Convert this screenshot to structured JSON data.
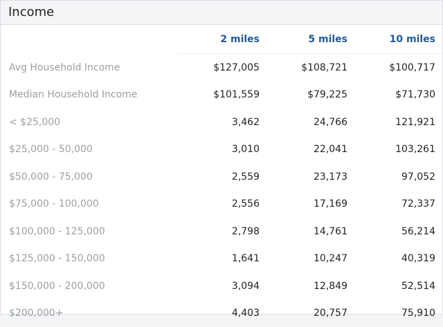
{
  "title": "Income",
  "columns": [
    "2 miles",
    "5 miles",
    "10 miles"
  ],
  "rows": [
    [
      "Avg Household Income",
      "$127,005",
      "$108,721",
      "$100,717"
    ],
    [
      "Median Household Income",
      "$101,559",
      "$79,225",
      "$71,730"
    ],
    [
      "< $25,000",
      "3,462",
      "24,766",
      "121,921"
    ],
    [
      "$25,000 - 50,000",
      "3,010",
      "22,041",
      "103,261"
    ],
    [
      "$50,000 - 75,000",
      "2,559",
      "23,173",
      "97,052"
    ],
    [
      "$75,000 - 100,000",
      "2,556",
      "17,169",
      "72,337"
    ],
    [
      "$100,000 - 125,000",
      "2,798",
      "14,761",
      "56,214"
    ],
    [
      "$125,000 - 150,000",
      "1,641",
      "10,247",
      "40,319"
    ],
    [
      "$150,000 - 200,000",
      "3,094",
      "12,849",
      "52,514"
    ],
    [
      "$200,000+",
      "4,403",
      "20,757",
      "75,910"
    ]
  ]
}
